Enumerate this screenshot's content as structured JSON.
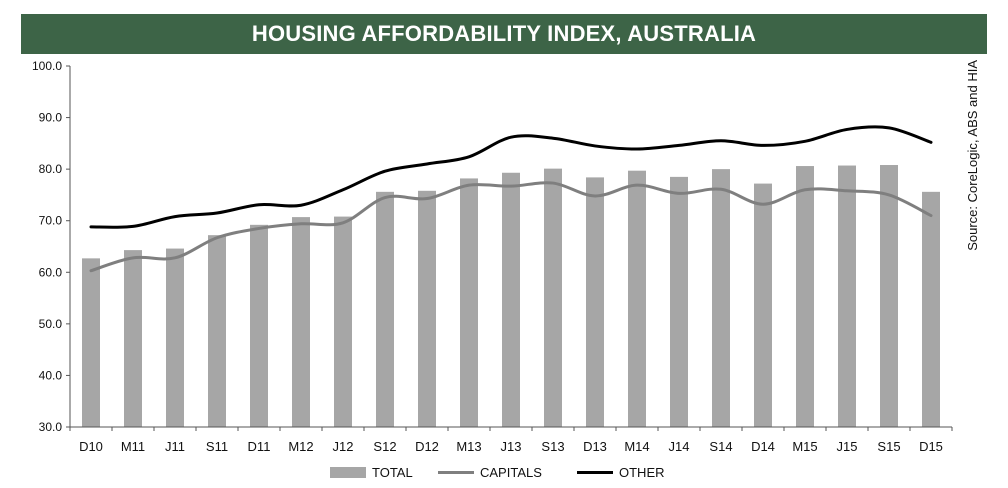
{
  "chart_data": {
    "type": "bar",
    "title": "HOUSING AFFORDABILITY INDEX, AUSTRALIA",
    "source_note": "Source: CoreLogic, ABS and HIA",
    "categories": [
      "D10",
      "M11",
      "J11",
      "S11",
      "D11",
      "M12",
      "J12",
      "S12",
      "D12",
      "M13",
      "J13",
      "S13",
      "D13",
      "M14",
      "J14",
      "S14",
      "D14",
      "M15",
      "J15",
      "S15",
      "D15"
    ],
    "ylim": [
      30.0,
      100.0
    ],
    "yticks": [
      "30.0",
      "40.0",
      "50.0",
      "60.0",
      "70.0",
      "80.0",
      "90.0",
      "100.0"
    ],
    "series": [
      {
        "name": "TOTAL",
        "kind": "bar",
        "color": "#a6a6a6",
        "values": [
          62.7,
          64.3,
          64.6,
          67.2,
          69.2,
          70.7,
          70.8,
          75.6,
          75.8,
          78.2,
          79.3,
          80.1,
          78.4,
          79.7,
          78.5,
          80.0,
          77.2,
          80.6,
          80.7,
          80.8,
          75.6
        ]
      },
      {
        "name": "CAPITALS",
        "kind": "line",
        "color": "#7f7f7f",
        "values": [
          60.3,
          62.8,
          62.8,
          66.7,
          68.5,
          69.4,
          69.6,
          74.5,
          74.3,
          76.9,
          76.7,
          77.3,
          74.8,
          76.9,
          75.3,
          76.1,
          73.2,
          76.0,
          75.8,
          75.0,
          71.0
        ]
      },
      {
        "name": "OTHER",
        "kind": "line",
        "color": "#000000",
        "values": [
          68.8,
          68.9,
          70.8,
          71.5,
          73.1,
          73.0,
          76.0,
          79.6,
          81.0,
          82.4,
          86.2,
          86.0,
          84.5,
          83.9,
          84.6,
          85.5,
          84.6,
          85.4,
          87.7,
          88.0,
          85.2
        ]
      }
    ],
    "legend_position": "bottom",
    "grid": false
  }
}
